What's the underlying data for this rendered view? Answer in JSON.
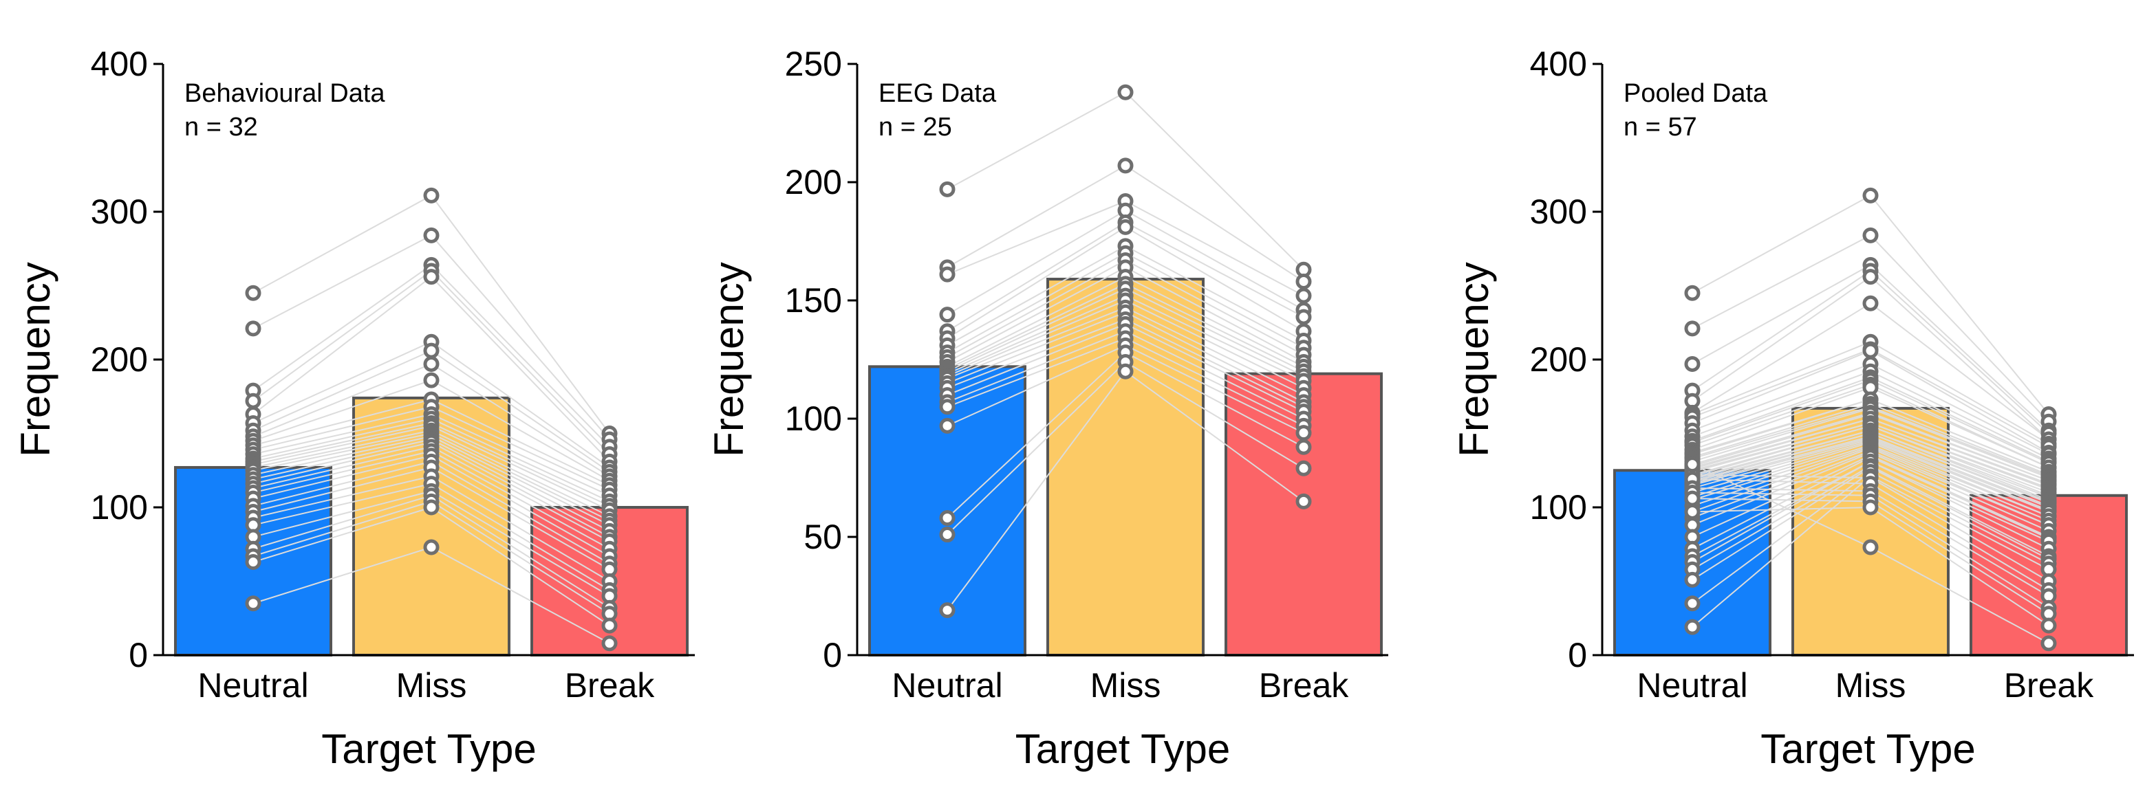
{
  "chart_data": [
    {
      "type": "bar",
      "annotation": {
        "title": "Behavioural Data",
        "n_label": "n = 32"
      },
      "xlabel": "Target Type",
      "ylabel": "Frequency",
      "ylim": [
        0,
        400
      ],
      "yticks": [
        0,
        100,
        200,
        300,
        400
      ],
      "categories": [
        "Neutral",
        "Miss",
        "Break"
      ],
      "colors": [
        "#1380FB",
        "#FCCA65",
        "#FC6467"
      ],
      "values": [
        127,
        174,
        100
      ],
      "points": {
        "Neutral": [
          245,
          221,
          179,
          172,
          163,
          157,
          152,
          148,
          145,
          142,
          139,
          136,
          133,
          131,
          129,
          127,
          125,
          122,
          119,
          116,
          113,
          110,
          106,
          101,
          97,
          93,
          88,
          80,
          72,
          67,
          63,
          35
        ],
        "Miss": [
          311,
          284,
          264,
          260,
          256,
          212,
          206,
          197,
          186,
          173,
          168,
          163,
          160,
          157,
          155,
          152,
          150,
          148,
          146,
          144,
          141,
          138,
          135,
          131,
          127,
          121,
          116,
          111,
          108,
          104,
          100,
          73
        ],
        "Break": [
          150,
          146,
          141,
          136,
          131,
          127,
          124,
          121,
          118,
          115,
          112,
          108,
          104,
          101,
          98,
          94,
          91,
          88,
          84,
          80,
          77,
          72,
          67,
          62,
          58,
          50,
          44,
          40,
          32,
          28,
          20,
          8
        ]
      }
    },
    {
      "type": "bar",
      "annotation": {
        "title": "EEG Data",
        "n_label": "n = 25"
      },
      "xlabel": "Target Type",
      "ylabel": "Frequency",
      "ylim": [
        0,
        250
      ],
      "yticks": [
        0,
        50,
        100,
        150,
        200,
        250
      ],
      "categories": [
        "Neutral",
        "Miss",
        "Break"
      ],
      "colors": [
        "#1380FB",
        "#FCCA65",
        "#FC6467"
      ],
      "values": [
        122,
        159,
        119
      ],
      "points": {
        "Neutral": [
          197,
          164,
          161,
          144,
          137,
          134,
          131,
          128,
          126,
          124,
          122,
          121,
          120,
          119,
          118,
          117,
          115,
          113,
          110,
          107,
          105,
          97,
          58,
          51,
          19
        ],
        "Miss": [
          238,
          207,
          192,
          188,
          183,
          181,
          173,
          170,
          167,
          164,
          160,
          157,
          155,
          152,
          150,
          147,
          145,
          142,
          140,
          137,
          134,
          131,
          128,
          124,
          120
        ],
        "Break": [
          163,
          158,
          152,
          146,
          143,
          137,
          133,
          130,
          127,
          124,
          122,
          120,
          118,
          116,
          113,
          110,
          107,
          105,
          103,
          100,
          97,
          94,
          88,
          79,
          65
        ]
      }
    },
    {
      "type": "bar",
      "annotation": {
        "title": "Pooled Data",
        "n_label": "n = 57"
      },
      "xlabel": "Target Type",
      "ylabel": "Frequency",
      "ylim": [
        0,
        400
      ],
      "yticks": [
        0,
        100,
        200,
        300,
        400
      ],
      "categories": [
        "Neutral",
        "Miss",
        "Break"
      ],
      "colors": [
        "#1380FB",
        "#FCCA65",
        "#FC6467"
      ],
      "values": [
        125,
        167,
        108
      ],
      "points": {
        "Neutral": [
          245,
          221,
          197,
          179,
          172,
          164,
          163,
          161,
          157,
          152,
          148,
          145,
          144,
          142,
          139,
          137,
          136,
          134,
          133,
          131,
          129,
          128,
          127,
          126,
          125,
          124,
          122,
          121,
          120,
          119,
          118,
          117,
          116,
          115,
          113,
          110,
          107,
          105,
          101,
          97,
          93,
          88,
          80,
          72,
          67,
          63,
          58,
          51,
          35,
          19,
          122,
          119,
          113,
          110,
          106,
          97,
          129
        ],
        "Miss": [
          311,
          284,
          264,
          260,
          256,
          238,
          212,
          207,
          206,
          197,
          192,
          188,
          186,
          183,
          181,
          173,
          173,
          170,
          168,
          167,
          164,
          163,
          160,
          160,
          157,
          157,
          155,
          155,
          152,
          152,
          150,
          150,
          148,
          147,
          146,
          145,
          144,
          142,
          141,
          140,
          138,
          137,
          135,
          134,
          131,
          131,
          128,
          127,
          124,
          121,
          120,
          116,
          111,
          108,
          104,
          100,
          73
        ],
        "Break": [
          163,
          158,
          152,
          150,
          146,
          146,
          143,
          141,
          137,
          136,
          133,
          131,
          130,
          127,
          127,
          124,
          124,
          122,
          121,
          120,
          118,
          118,
          116,
          115,
          113,
          112,
          110,
          108,
          107,
          105,
          104,
          103,
          101,
          100,
          98,
          97,
          94,
          94,
          91,
          88,
          88,
          84,
          80,
          79,
          77,
          72,
          67,
          65,
          62,
          58,
          50,
          44,
          40,
          32,
          28,
          20,
          8
        ]
      }
    }
  ]
}
